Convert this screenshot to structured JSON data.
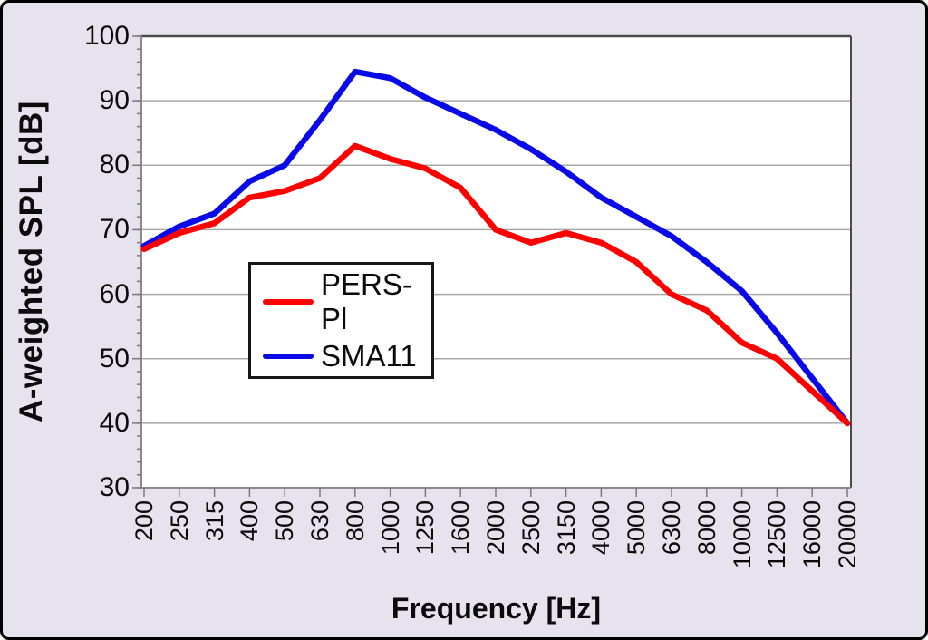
{
  "figure": {
    "background": "#E6E2EE",
    "border_color": "#000000",
    "plot_background": "#FFFFFF"
  },
  "colors": {
    "gridline": "#A8A8A8",
    "axis_line": "#8A8A8A",
    "plot_border_dark": "#4A4A4A",
    "tick_mark": "#7A7A7A",
    "text": "#0B0B0B",
    "legend_border": "#161616",
    "series_red": "#FE0000",
    "series_blue": "#0A0AE8"
  },
  "chart_data": {
    "type": "line",
    "title": "",
    "xlabel": "Frequency [Hz]",
    "ylabel": "A-weighted SPL [dB]",
    "categories": [
      "200",
      "250",
      "315",
      "400",
      "500",
      "630",
      "800",
      "1000",
      "1250",
      "1600",
      "2000",
      "2500",
      "3150",
      "4000",
      "5000",
      "6300",
      "8000",
      "10000",
      "12500",
      "16000",
      "20000"
    ],
    "series": [
      {
        "name": "PERS-Pl",
        "color": "#FE0000",
        "values": [
          67,
          69.5,
          71,
          75,
          76,
          78,
          83,
          81,
          79.5,
          76.5,
          70,
          68,
          69.5,
          68,
          65,
          60,
          57.5,
          52.5,
          50,
          45,
          40
        ]
      },
      {
        "name": "SMA11",
        "color": "#0A0AE8",
        "values": [
          67.5,
          70.5,
          72.5,
          77.5,
          80,
          87,
          94.5,
          93.5,
          90.5,
          88,
          85.5,
          82.5,
          79,
          75,
          72,
          69,
          65,
          60.5,
          54,
          47,
          40
        ]
      }
    ],
    "ylim": [
      30,
      100
    ],
    "yticks": [
      100,
      90,
      80,
      70,
      60,
      50,
      40,
      30
    ],
    "y_minor_step": 2,
    "x_tick_every_category": true,
    "grid": "horizontal",
    "legend_position": "inside-left-center",
    "x_label_rotation": "vertical-bottom-to-top"
  },
  "legend": {
    "items": [
      {
        "label": "PERS-Pl",
        "color": "#FE0000"
      },
      {
        "label": "SMA11",
        "color": "#0A0AE8"
      }
    ]
  }
}
